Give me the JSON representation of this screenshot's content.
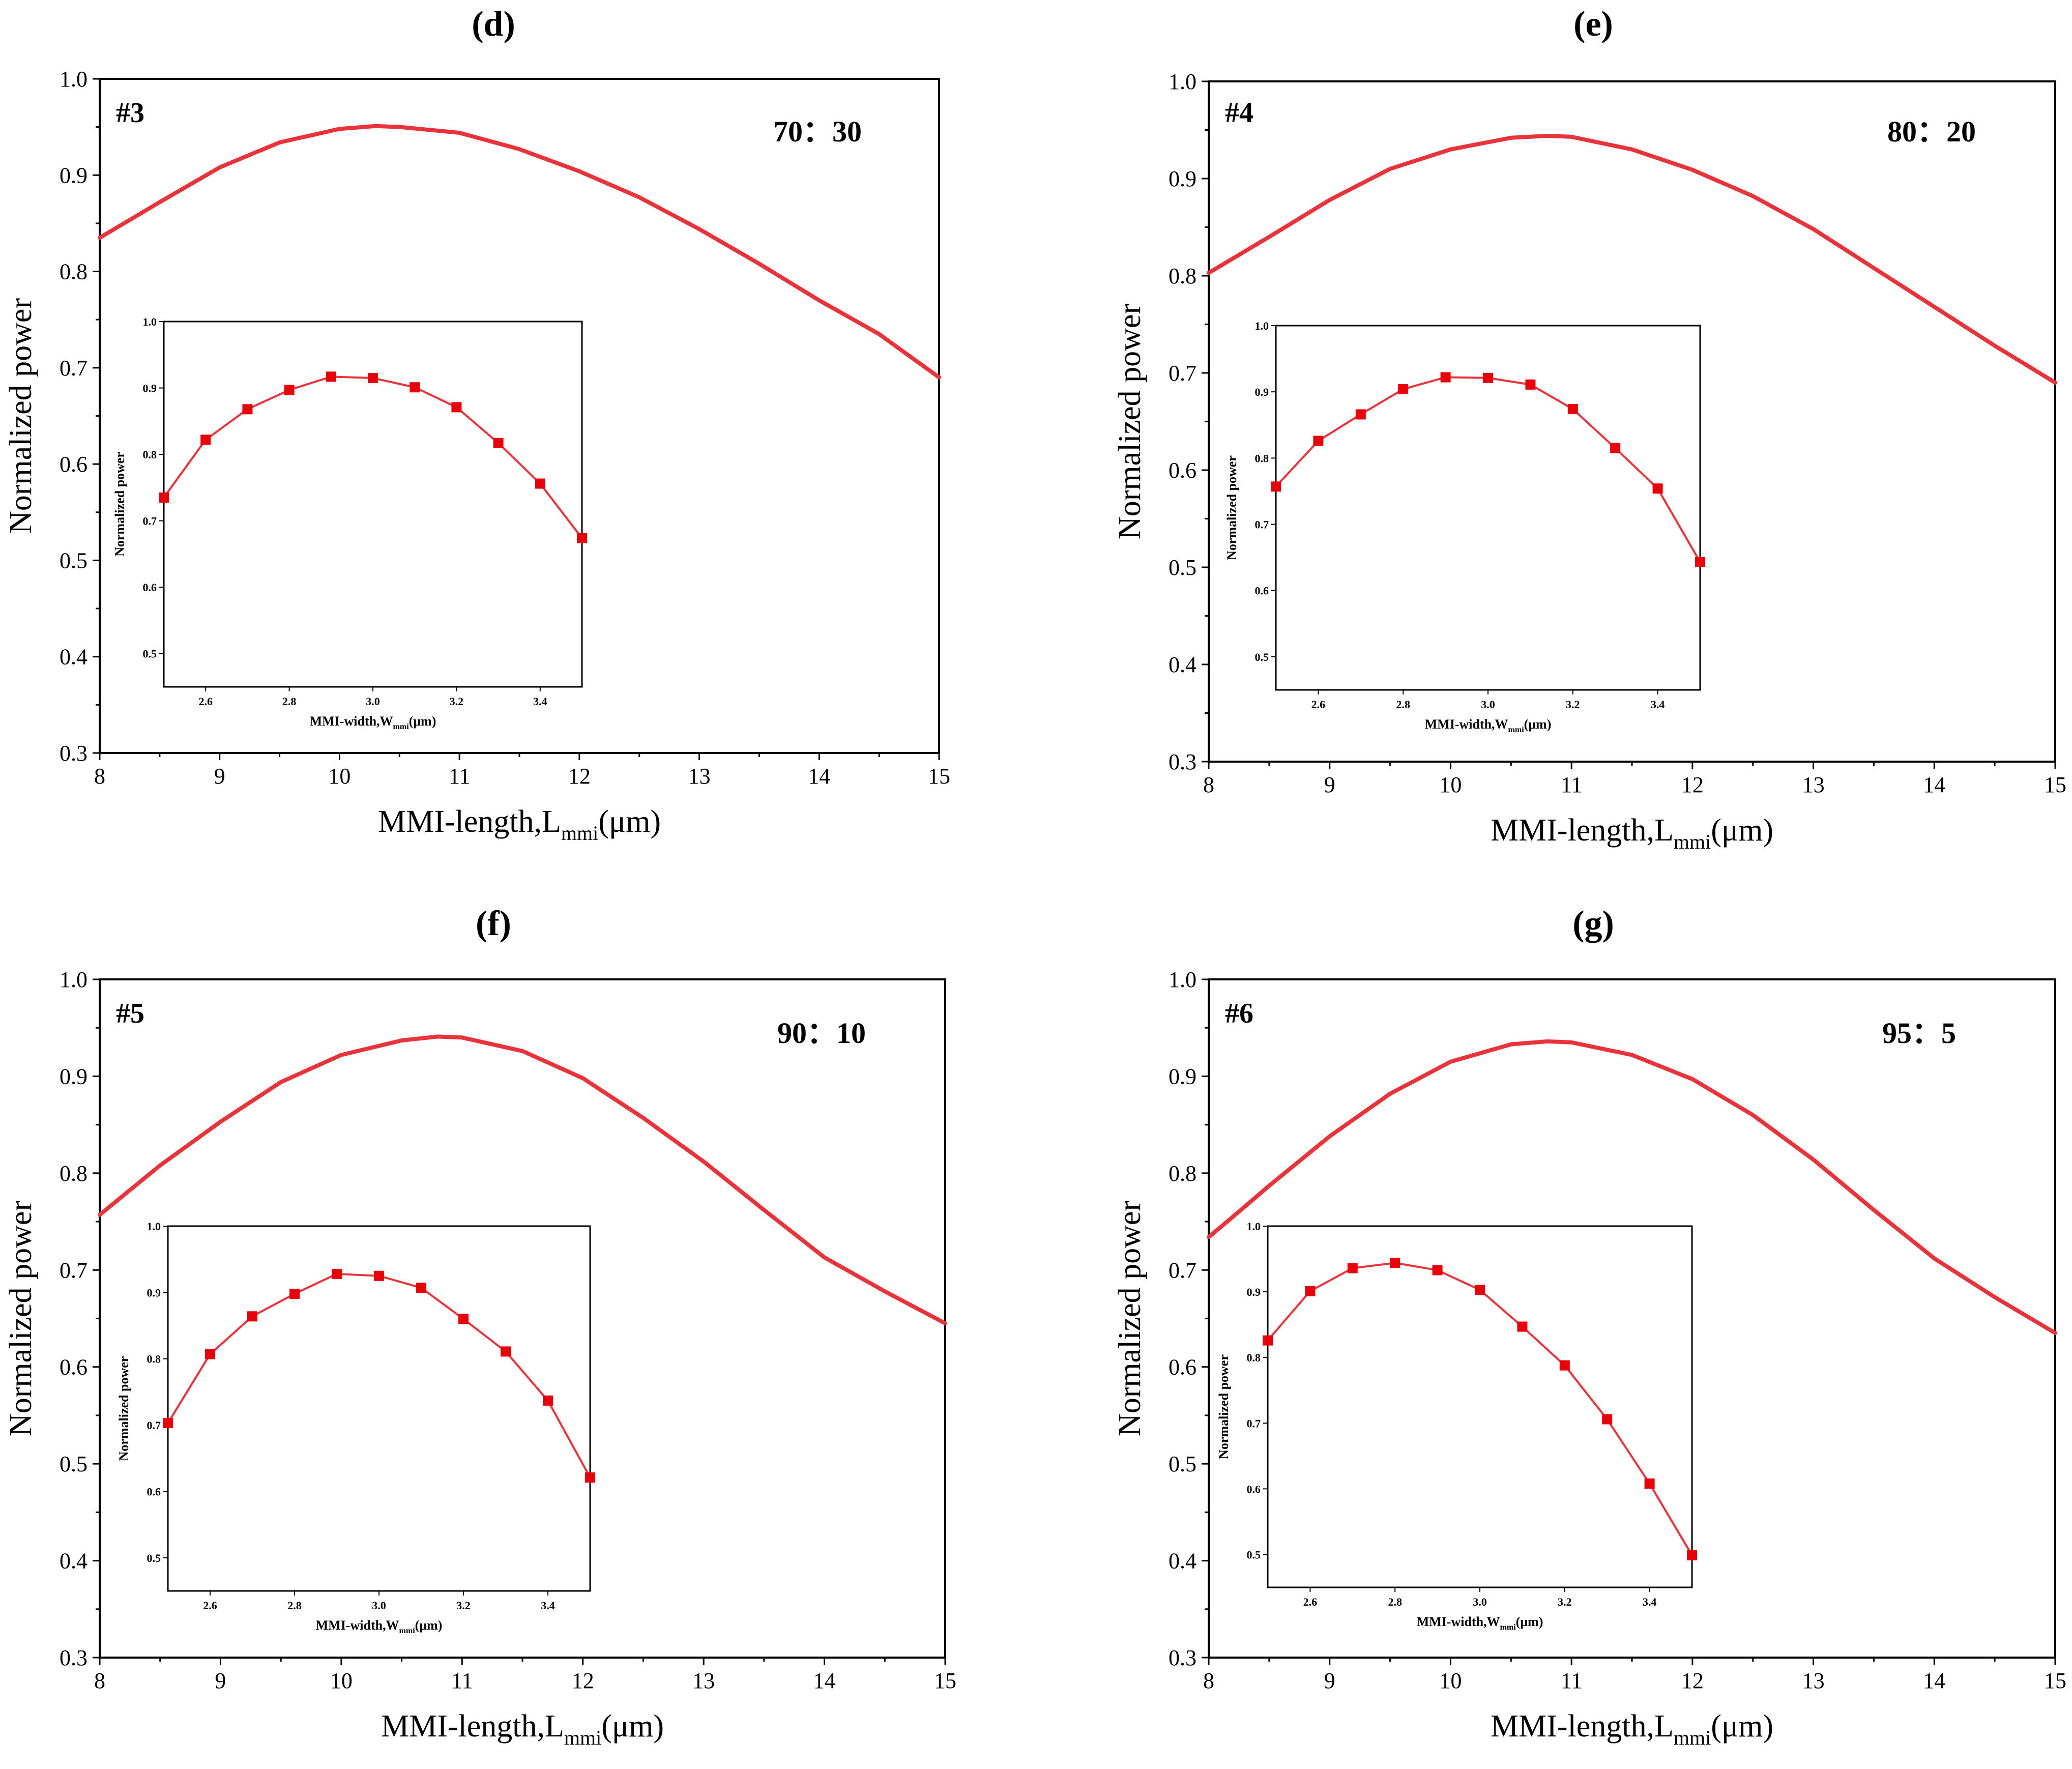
{
  "chart_data": [
    {
      "type": "line",
      "panel_label": "(d)",
      "device_id": "#3",
      "ratio": "70：30",
      "xlabel": {
        "prefix": "MMI-length,L",
        "sub": "mmi",
        "suffix": "(μm)"
      },
      "ylabel": "Normalized power",
      "xlim": [
        8,
        15
      ],
      "ylim": [
        0.3,
        1.0
      ],
      "xticks": [
        8,
        9,
        10,
        11,
        12,
        13,
        14,
        15
      ],
      "yticks": [
        0.3,
        0.4,
        0.5,
        0.6,
        0.7,
        0.8,
        0.9,
        1.0
      ],
      "color": "#e8333b",
      "series": [
        {
          "name": "main",
          "x": [
            8.0,
            8.5,
            9.0,
            9.5,
            10.0,
            10.3,
            10.5,
            11.0,
            11.5,
            12.0,
            12.5,
            13.0,
            13.5,
            14.0,
            14.5,
            15.0
          ],
          "y": [
            0.835,
            0.872,
            0.908,
            0.934,
            0.948,
            0.951,
            0.95,
            0.944,
            0.927,
            0.904,
            0.877,
            0.844,
            0.808,
            0.77,
            0.735,
            0.69
          ]
        }
      ],
      "inset": {
        "type": "line",
        "xlabel": {
          "prefix": "MMI-width,W",
          "sub": "mmi",
          "suffix": "(μm)"
        },
        "ylabel": "Normalized power",
        "xlim": [
          2.5,
          3.5
        ],
        "ylim": [
          0.45,
          1.0
        ],
        "xticks": [
          2.6,
          2.8,
          3.0,
          3.2,
          3.4
        ],
        "yticks": [
          0.5,
          0.6,
          0.7,
          0.8,
          0.9,
          1.0
        ],
        "series": [
          {
            "name": "inset",
            "marker": "square",
            "x": [
              2.5,
              2.6,
              2.7,
              2.8,
              2.9,
              3.0,
              3.1,
              3.2,
              3.3,
              3.4,
              3.5
            ],
            "y": [
              0.735,
              0.822,
              0.868,
              0.897,
              0.917,
              0.915,
              0.901,
              0.871,
              0.817,
              0.756,
              0.674
            ]
          }
        ]
      }
    },
    {
      "type": "line",
      "panel_label": "(e)",
      "device_id": "#4",
      "ratio": "80：20",
      "xlabel": {
        "prefix": "MMI-length,L",
        "sub": "mmi",
        "suffix": "(μm)"
      },
      "ylabel": "Normalized power",
      "xlim": [
        8,
        15
      ],
      "ylim": [
        0.3,
        1.0
      ],
      "xticks": [
        8,
        9,
        10,
        11,
        12,
        13,
        14,
        15
      ],
      "yticks": [
        0.3,
        0.4,
        0.5,
        0.6,
        0.7,
        0.8,
        0.9,
        1.0
      ],
      "color": "#e8333b",
      "series": [
        {
          "name": "main",
          "x": [
            8.0,
            8.5,
            9.0,
            9.5,
            10.0,
            10.5,
            10.8,
            11.0,
            11.5,
            12.0,
            12.5,
            13.0,
            13.5,
            14.0,
            14.5,
            15.0
          ],
          "y": [
            0.803,
            0.84,
            0.878,
            0.91,
            0.93,
            0.942,
            0.944,
            0.943,
            0.93,
            0.909,
            0.882,
            0.848,
            0.808,
            0.768,
            0.728,
            0.69
          ]
        }
      ],
      "inset": {
        "type": "line",
        "xlabel": {
          "prefix": "MMI-width,W",
          "sub": "mmi",
          "suffix": "(μm)"
        },
        "ylabel": "Normalized power",
        "xlim": [
          2.5,
          3.5
        ],
        "ylim": [
          0.45,
          1.0
        ],
        "xticks": [
          2.6,
          2.8,
          3.0,
          3.2,
          3.4
        ],
        "yticks": [
          0.5,
          0.6,
          0.7,
          0.8,
          0.9,
          1.0
        ],
        "series": [
          {
            "name": "inset",
            "marker": "square",
            "x": [
              2.5,
              2.6,
              2.7,
              2.8,
              2.9,
              3.0,
              3.1,
              3.2,
              3.3,
              3.4,
              3.5
            ],
            "y": [
              0.757,
              0.826,
              0.866,
              0.904,
              0.922,
              0.921,
              0.911,
              0.874,
              0.815,
              0.754,
              0.643
            ]
          }
        ]
      }
    },
    {
      "type": "line",
      "panel_label": "(f)",
      "device_id": "#5",
      "ratio": "90：10",
      "xlabel": {
        "prefix": "MMI-length,L",
        "sub": "mmi",
        "suffix": "(μm)"
      },
      "ylabel": "Normalized power",
      "xlim": [
        8,
        15
      ],
      "ylim": [
        0.3,
        1.0
      ],
      "xticks": [
        8,
        9,
        10,
        11,
        12,
        13,
        14,
        15
      ],
      "yticks": [
        0.3,
        0.4,
        0.5,
        0.6,
        0.7,
        0.8,
        0.9,
        1.0
      ],
      "color": "#e8333b",
      "series": [
        {
          "name": "main",
          "x": [
            8.0,
            8.5,
            9.0,
            9.5,
            10.0,
            10.5,
            10.8,
            11.0,
            11.5,
            12.0,
            12.5,
            13.0,
            13.5,
            14.0,
            14.5,
            15.0
          ],
          "y": [
            0.757,
            0.808,
            0.853,
            0.894,
            0.922,
            0.937,
            0.941,
            0.94,
            0.926,
            0.898,
            0.857,
            0.812,
            0.762,
            0.713,
            0.678,
            0.645
          ]
        }
      ],
      "inset": {
        "type": "line",
        "xlabel": {
          "prefix": "MMI-width,W",
          "sub": "mmi",
          "suffix": "(μm)"
        },
        "ylabel": "Normalized power",
        "xlim": [
          2.5,
          3.5
        ],
        "ylim": [
          0.45,
          1.0
        ],
        "xticks": [
          2.6,
          2.8,
          3.0,
          3.2,
          3.4
        ],
        "yticks": [
          0.5,
          0.6,
          0.7,
          0.8,
          0.9,
          1.0
        ],
        "series": [
          {
            "name": "inset",
            "marker": "square",
            "x": [
              2.5,
              2.6,
              2.7,
              2.8,
              2.9,
              3.0,
              3.1,
              3.2,
              3.3,
              3.4,
              3.5
            ],
            "y": [
              0.703,
              0.807,
              0.864,
              0.898,
              0.928,
              0.925,
              0.907,
              0.86,
              0.811,
              0.737,
              0.621
            ]
          }
        ]
      }
    },
    {
      "type": "line",
      "panel_label": "(g)",
      "device_id": "#6",
      "ratio": "95：5",
      "xlabel": {
        "prefix": "MMI-length,L",
        "sub": "mmi",
        "suffix": "(μm)"
      },
      "ylabel": "Normalized power",
      "xlim": [
        8,
        15
      ],
      "ylim": [
        0.3,
        1.0
      ],
      "xticks": [
        8,
        9,
        10,
        11,
        12,
        13,
        14,
        15
      ],
      "yticks": [
        0.3,
        0.4,
        0.5,
        0.6,
        0.7,
        0.8,
        0.9,
        1.0
      ],
      "color": "#e8333b",
      "series": [
        {
          "name": "main",
          "x": [
            8.0,
            8.2,
            8.5,
            9.0,
            9.5,
            10.0,
            10.5,
            10.8,
            11.0,
            11.5,
            12.0,
            12.5,
            13.0,
            13.5,
            14.0,
            14.5,
            15.0
          ],
          "y": [
            0.734,
            0.755,
            0.787,
            0.838,
            0.882,
            0.915,
            0.933,
            0.936,
            0.935,
            0.922,
            0.897,
            0.86,
            0.814,
            0.762,
            0.712,
            0.672,
            0.635
          ]
        }
      ],
      "inset": {
        "type": "line",
        "xlabel": {
          "prefix": "MMI-width,W",
          "sub": "mmi",
          "suffix": "(μm)"
        },
        "ylabel": "Normalized power",
        "xlim": [
          2.5,
          3.5
        ],
        "ylim": [
          0.45,
          1.0
        ],
        "xticks": [
          2.6,
          2.8,
          3.0,
          3.2,
          3.4
        ],
        "yticks": [
          0.5,
          0.6,
          0.7,
          0.8,
          0.9,
          1.0
        ],
        "series": [
          {
            "name": "inset",
            "marker": "square",
            "x": [
              2.5,
              2.6,
              2.7,
              2.8,
              2.9,
              3.0,
              3.1,
              3.2,
              3.3,
              3.4,
              3.5
            ],
            "y": [
              0.826,
              0.901,
              0.936,
              0.944,
              0.933,
              0.903,
              0.847,
              0.788,
              0.706,
              0.608,
              0.499
            ]
          }
        ]
      }
    }
  ]
}
